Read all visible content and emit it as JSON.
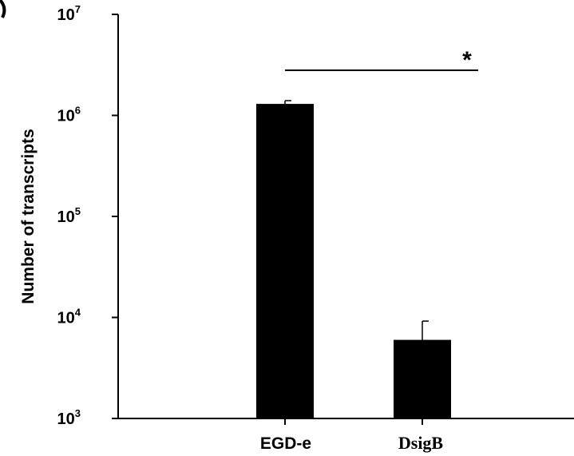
{
  "chart_data": {
    "type": "bar",
    "yscale": "log",
    "ylim": [
      1000,
      10000000
    ],
    "ylabel": "Number of transcripts",
    "xlabel": "",
    "title": "",
    "y_ticks": [
      {
        "base": "10",
        "exp": "3"
      },
      {
        "base": "10",
        "exp": "4"
      },
      {
        "base": "10",
        "exp": "5"
      },
      {
        "base": "10",
        "exp": "6"
      },
      {
        "base": "10",
        "exp": "7"
      }
    ],
    "categories": [
      "EGD-e",
      "DsigB"
    ],
    "values": [
      1300000,
      6000
    ],
    "error_upper": [
      1400000,
      9200
    ],
    "bar_color": "#000000",
    "significance": {
      "between": [
        "EGD-e",
        "DsigB"
      ],
      "label": "*"
    },
    "grid": false
  }
}
